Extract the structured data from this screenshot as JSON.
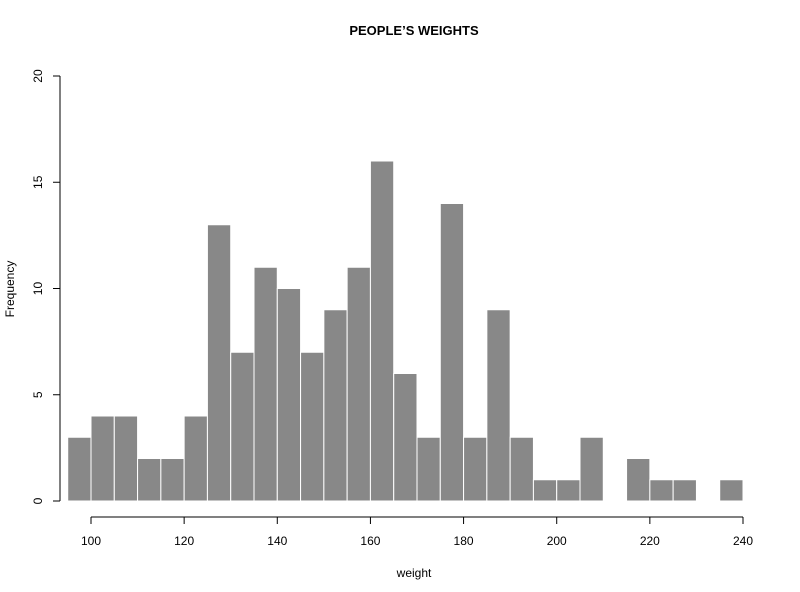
{
  "chart_data": {
    "type": "bar",
    "title": "PEOPLE’S WEIGHTS",
    "xlabel": "weight",
    "ylabel": "Frequency",
    "bin_width": 5,
    "bins": [
      {
        "start": 95,
        "end": 100,
        "value": 3
      },
      {
        "start": 100,
        "end": 105,
        "value": 4
      },
      {
        "start": 105,
        "end": 110,
        "value": 4
      },
      {
        "start": 110,
        "end": 115,
        "value": 2
      },
      {
        "start": 115,
        "end": 120,
        "value": 2
      },
      {
        "start": 120,
        "end": 125,
        "value": 4
      },
      {
        "start": 125,
        "end": 130,
        "value": 13
      },
      {
        "start": 130,
        "end": 135,
        "value": 7
      },
      {
        "start": 135,
        "end": 140,
        "value": 11
      },
      {
        "start": 140,
        "end": 145,
        "value": 10
      },
      {
        "start": 145,
        "end": 150,
        "value": 7
      },
      {
        "start": 150,
        "end": 155,
        "value": 9
      },
      {
        "start": 155,
        "end": 160,
        "value": 11
      },
      {
        "start": 160,
        "end": 165,
        "value": 16
      },
      {
        "start": 165,
        "end": 170,
        "value": 6
      },
      {
        "start": 170,
        "end": 175,
        "value": 3
      },
      {
        "start": 175,
        "end": 180,
        "value": 14
      },
      {
        "start": 180,
        "end": 185,
        "value": 3
      },
      {
        "start": 185,
        "end": 190,
        "value": 9
      },
      {
        "start": 190,
        "end": 195,
        "value": 3
      },
      {
        "start": 195,
        "end": 200,
        "value": 1
      },
      {
        "start": 200,
        "end": 205,
        "value": 1
      },
      {
        "start": 205,
        "end": 210,
        "value": 3
      },
      {
        "start": 210,
        "end": 215,
        "value": 0
      },
      {
        "start": 215,
        "end": 220,
        "value": 2
      },
      {
        "start": 220,
        "end": 225,
        "value": 1
      },
      {
        "start": 225,
        "end": 230,
        "value": 1
      },
      {
        "start": 230,
        "end": 235,
        "value": 0
      },
      {
        "start": 235,
        "end": 240,
        "value": 1
      }
    ],
    "xlim": [
      95,
      240
    ],
    "ylim": [
      0,
      20
    ],
    "x_ticks": [
      "100",
      "120",
      "140",
      "160",
      "180",
      "200",
      "220",
      "240"
    ],
    "y_ticks": [
      "0",
      "5",
      "10",
      "15",
      "20"
    ],
    "bar_color": "#888888",
    "bar_border_color": "#ffffff",
    "grid": false
  }
}
